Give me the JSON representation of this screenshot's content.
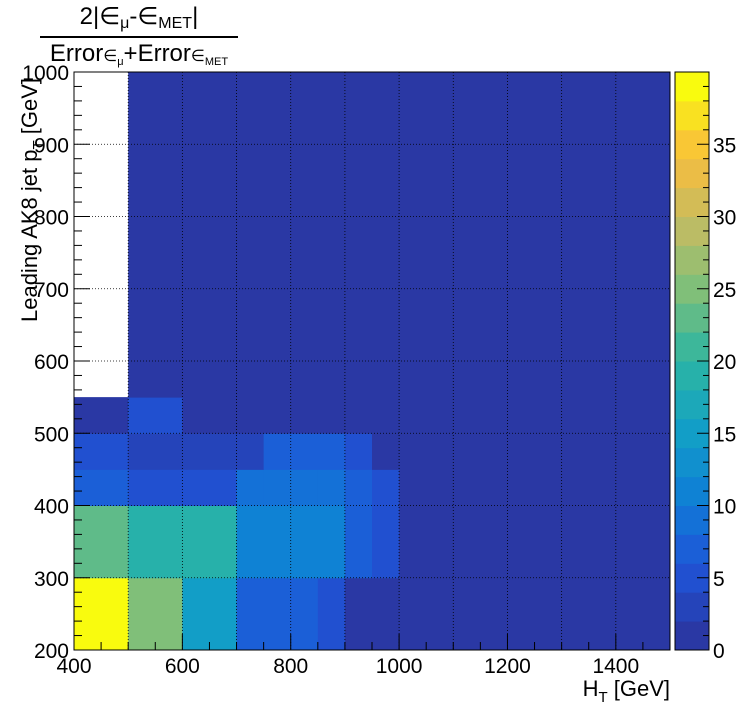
{
  "chart_data": {
    "type": "heatmap",
    "title": {
      "numerator": {
        "prefix": "2|∈",
        "mu": "μ",
        "mid": "-∈",
        "met": "MET",
        "suffix": "|"
      },
      "denominator": {
        "err1": "Error",
        "eps1": "∈",
        "mu": "μ",
        "plus": "+Error",
        "eps2": "∈",
        "met": "MET"
      }
    },
    "xlabel": {
      "main": "H",
      "sub": "T",
      "unit": " [GeV]"
    },
    "ylabel": {
      "main": "Leading AK8 jet p",
      "sub": "T",
      "unit": " [GeV]"
    },
    "xlim": [
      400,
      1500
    ],
    "ylim": [
      200,
      1000
    ],
    "zlim": [
      0,
      40
    ],
    "grid": true,
    "palette": "kBird",
    "xticks": [
      400,
      600,
      800,
      1000,
      1200,
      1400
    ],
    "xtick_labels": [
      "400",
      "600",
      "800",
      "1000",
      "1200",
      "1400"
    ],
    "yticks": [
      200,
      300,
      400,
      500,
      600,
      700,
      800,
      900,
      1000
    ],
    "ytick_labels": [
      "200",
      "300",
      "400",
      "500",
      "600",
      "700",
      "800",
      "900",
      "1000"
    ],
    "zticks": [
      0,
      5,
      10,
      15,
      20,
      25,
      30,
      35
    ],
    "ztick_labels": [
      "0",
      "5",
      "10",
      "15",
      "20",
      "25",
      "30",
      "35"
    ],
    "cells": [
      {
        "x": [
          400,
          500
        ],
        "y": [
          200,
          300
        ],
        "v": 39.5
      },
      {
        "x": [
          500,
          600
        ],
        "y": [
          200,
          300
        ],
        "v": 24
      },
      {
        "x": [
          600,
          700
        ],
        "y": [
          200,
          300
        ],
        "v": 14
      },
      {
        "x": [
          700,
          850
        ],
        "y": [
          200,
          300
        ],
        "v": 6
      },
      {
        "x": [
          850,
          900
        ],
        "y": [
          200,
          300
        ],
        "v": 4
      },
      {
        "x": [
          900,
          1000
        ],
        "y": [
          200,
          300
        ],
        "v": 1.5
      },
      {
        "x": [
          1000,
          1500
        ],
        "y": [
          200,
          300
        ],
        "v": 1.5
      },
      {
        "x": [
          400,
          500
        ],
        "y": [
          300,
          400
        ],
        "v": 23
      },
      {
        "x": [
          500,
          600
        ],
        "y": [
          300,
          400
        ],
        "v": 19
      },
      {
        "x": [
          600,
          700
        ],
        "y": [
          300,
          400
        ],
        "v": 18.5
      },
      {
        "x": [
          700,
          900
        ],
        "y": [
          300,
          400
        ],
        "v": 10
      },
      {
        "x": [
          900,
          950
        ],
        "y": [
          300,
          400
        ],
        "v": 6
      },
      {
        "x": [
          950,
          1000
        ],
        "y": [
          300,
          400
        ],
        "v": 4
      },
      {
        "x": [
          1000,
          1500
        ],
        "y": [
          300,
          400
        ],
        "v": 1.5
      },
      {
        "x": [
          400,
          500
        ],
        "y": [
          400,
          450
        ],
        "v": 6
      },
      {
        "x": [
          500,
          700
        ],
        "y": [
          400,
          450
        ],
        "v": 5
      },
      {
        "x": [
          700,
          750
        ],
        "y": [
          400,
          450
        ],
        "v": 8
      },
      {
        "x": [
          750,
          850
        ],
        "y": [
          400,
          450
        ],
        "v": 9.5
      },
      {
        "x": [
          850,
          900
        ],
        "y": [
          400,
          450
        ],
        "v": 8
      },
      {
        "x": [
          900,
          950
        ],
        "y": [
          400,
          450
        ],
        "v": 6
      },
      {
        "x": [
          950,
          1000
        ],
        "y": [
          400,
          450
        ],
        "v": 5
      },
      {
        "x": [
          1000,
          1500
        ],
        "y": [
          400,
          450
        ],
        "v": 1.5
      },
      {
        "x": [
          400,
          500
        ],
        "y": [
          450,
          500
        ],
        "v": 4
      },
      {
        "x": [
          500,
          750
        ],
        "y": [
          450,
          500
        ],
        "v": 2.5
      },
      {
        "x": [
          750,
          900
        ],
        "y": [
          450,
          500
        ],
        "v": 6
      },
      {
        "x": [
          900,
          950
        ],
        "y": [
          450,
          500
        ],
        "v": 4
      },
      {
        "x": [
          950,
          1500
        ],
        "y": [
          450,
          500
        ],
        "v": 1.5
      },
      {
        "x": [
          400,
          500
        ],
        "y": [
          500,
          550
        ],
        "v": 1.5
      },
      {
        "x": [
          500,
          600
        ],
        "y": [
          500,
          550
        ],
        "v": 4
      },
      {
        "x": [
          600,
          1500
        ],
        "y": [
          500,
          550
        ],
        "v": 1.5
      },
      {
        "x": [
          400,
          500
        ],
        "y": [
          550,
          1000
        ],
        "v": null
      },
      {
        "x": [
          500,
          1500
        ],
        "y": [
          550,
          1000
        ],
        "v": 1.5
      }
    ]
  }
}
